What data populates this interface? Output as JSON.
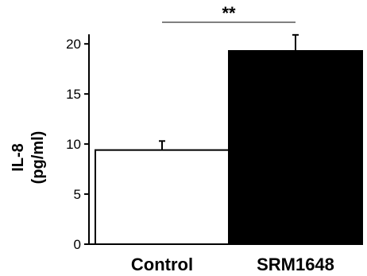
{
  "chart_data": {
    "type": "bar",
    "categories": [
      "Control",
      "SRM1648"
    ],
    "values": [
      9.4,
      19.3
    ],
    "errors": [
      0.9,
      1.6
    ],
    "bar_colors": [
      "#ffffff",
      "#000000"
    ],
    "ylabel_line1": "IL-8",
    "ylabel_line2": "(pg/ml)",
    "ylim": [
      0,
      22
    ],
    "yticks": [
      0,
      5,
      10,
      15,
      20
    ],
    "significance": "**",
    "grid": false
  }
}
